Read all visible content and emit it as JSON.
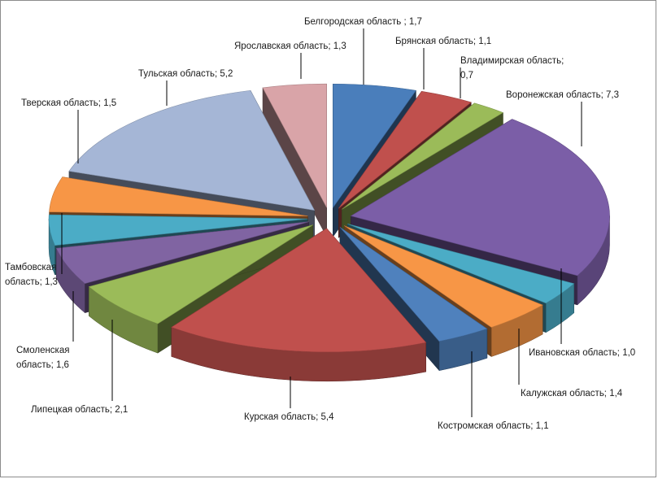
{
  "chart_data": {
    "type": "pie",
    "title": "",
    "exploded": true,
    "three_d": true,
    "data_labels": "outside, category name and value",
    "slices": [
      {
        "name": "Белгородская область",
        "label": "Белгородская область ; 1,7",
        "value": 1.7,
        "color": "#4a7ebb"
      },
      {
        "name": "Брянская область",
        "label": "Брянская область; 1,1",
        "value": 1.1,
        "color": "#c0504d"
      },
      {
        "name": "Владимирская область",
        "label": "Владимирская область;|0,7",
        "value": 0.7,
        "color": "#9bbb59"
      },
      {
        "name": "Воронежская область",
        "label": "Воронежская область; 7,3",
        "value": 7.3,
        "color": "#7b5ea7"
      },
      {
        "name": "Ивановская область",
        "label": "Ивановская область; 1,0",
        "value": 1.0,
        "color": "#4bacc6"
      },
      {
        "name": "Калужская область",
        "label": "Калужская область; 1,4",
        "value": 1.4,
        "color": "#f79646"
      },
      {
        "name": "Костромская область",
        "label": "Костромская область; 1,1",
        "value": 1.1,
        "color": "#4f81bd"
      },
      {
        "name": "Курская область",
        "label": "Курская область; 5,4",
        "value": 5.4,
        "color": "#c0504d"
      },
      {
        "name": "Липецкая область",
        "label": "Липецкая область; 2,1",
        "value": 2.1,
        "color": "#9bbb59"
      },
      {
        "name": "Смоленская область",
        "label": "Смоленская|область; 1,6",
        "value": 1.6,
        "color": "#8064a2"
      },
      {
        "name": "Тамбовская область",
        "label": "Тамбовская|область; 1,3",
        "value": 1.3,
        "color": "#4bacc6"
      },
      {
        "name": "Тверская область",
        "label": "Тверская область; 1,5",
        "value": 1.5,
        "color": "#f79646"
      },
      {
        "name": "Тульская область",
        "label": "Тульская область; 5,2",
        "value": 5.2,
        "color": "#a5b6d6"
      },
      {
        "name": "Ярославская область",
        "label": "Ярославская область; 1,3",
        "value": 1.3,
        "color": "#d9a4a8"
      }
    ]
  }
}
